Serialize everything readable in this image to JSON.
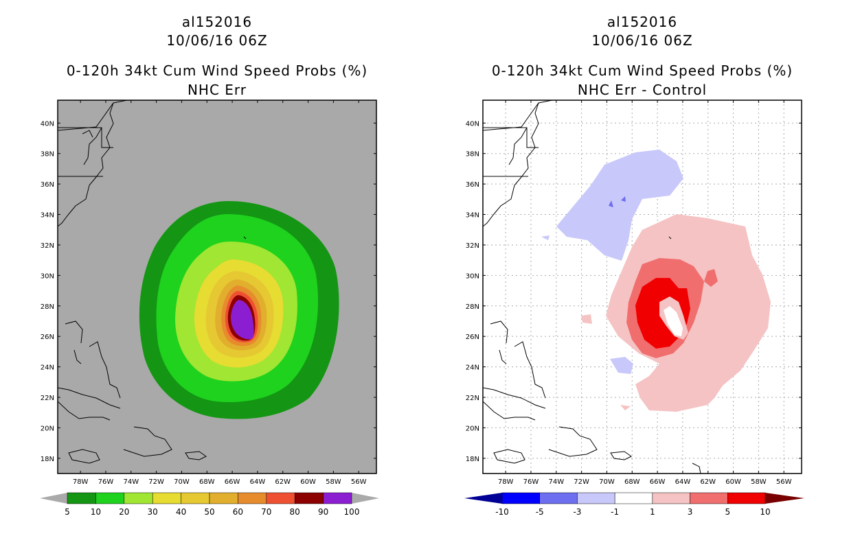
{
  "left": {
    "title1": "al152016",
    "title2": "10/06/16 06Z",
    "title3": "0-120h 34kt Cum Wind Speed Probs (%)",
    "title4": "NHC Err",
    "colorbar": {
      "labels": [
        "5",
        "10",
        "20",
        "30",
        "40",
        "50",
        "60",
        "70",
        "80",
        "90",
        "100"
      ],
      "colors": [
        "#149614",
        "#1ed21e",
        "#a0e632",
        "#e6dc32",
        "#e6c832",
        "#e1af2d",
        "#e68c2d",
        "#f05032",
        "#8c0000",
        "#8c1ed2"
      ],
      "arrow_color": "#aaaaaa"
    }
  },
  "right": {
    "title1": "al152016",
    "title2": "10/06/16 06Z",
    "title3": "0-120h 34kt Cum Wind Speed Probs (%)",
    "title4": "NHC Err - Control",
    "colorbar": {
      "labels": [
        "-10",
        "-5",
        "-3",
        "-1",
        "1",
        "3",
        "5",
        "10"
      ],
      "colors": [
        "#0000ff",
        "#6e6ef0",
        "#c8c8fa",
        "#ffffff",
        "#f5c3c3",
        "#f06e6e",
        "#f00000"
      ],
      "low_arrow_color": "#000096",
      "high_arrow_color": "#780000"
    }
  },
  "map": {
    "lat_labels": [
      "40N",
      "38N",
      "36N",
      "34N",
      "32N",
      "30N",
      "28N",
      "26N",
      "24N",
      "22N",
      "20N",
      "18N"
    ],
    "lon_labels": [
      "78W",
      "76W",
      "74W",
      "72W",
      "70W",
      "68W",
      "66W",
      "64W",
      "62W",
      "60W",
      "58W",
      "56W"
    ],
    "lat_values": [
      40,
      38,
      36,
      34,
      32,
      30,
      28,
      26,
      24,
      22,
      20,
      18
    ],
    "lon_values": [
      78,
      76,
      74,
      72,
      70,
      68,
      66,
      64,
      62,
      60,
      58,
      56
    ],
    "lat_range": [
      17,
      41.5
    ],
    "lon_range": [
      79.8,
      54.6
    ],
    "ocean_fill_left": "#a9a9a9"
  }
}
